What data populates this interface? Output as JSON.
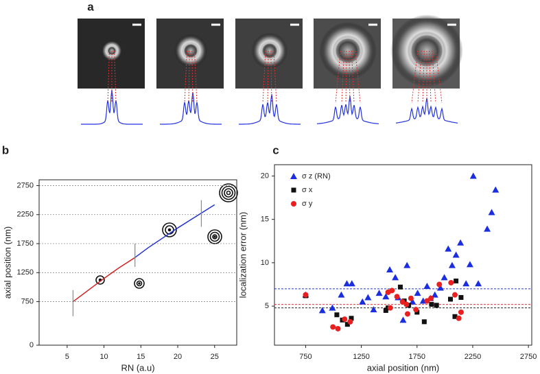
{
  "panel_labels": [
    "a",
    "b",
    "c"
  ],
  "chart_data": [
    {
      "type": "line",
      "xlabel": "RN (a.u)",
      "ylabel": "axial position (nm)",
      "xlim": [
        1.2,
        28
      ],
      "ylim": [
        0,
        2850
      ],
      "xticks": [
        5,
        10,
        15,
        20,
        25
      ],
      "yticks": [
        0,
        750,
        1250,
        1750,
        2250,
        2750
      ],
      "grid": true,
      "series": [
        {
          "color": "#d42020",
          "x": [
            5.8,
            8,
            10,
            12,
            14.2
          ],
          "values": [
            750,
            960,
            1150,
            1330,
            1510
          ]
        },
        {
          "color": "#2030d0",
          "x": [
            14.2,
            16,
            18,
            20,
            22,
            24,
            25
          ],
          "values": [
            1510,
            1680,
            1850,
            2020,
            2180,
            2340,
            2420
          ]
        }
      ],
      "error_bars": {
        "color": "#888888",
        "x": [
          5.8,
          14.2,
          23.2
        ],
        "values": [
          725,
          1550,
          2270
        ],
        "errors": [
          225,
          200,
          230
        ]
      }
    },
    {
      "type": "scatter",
      "xlabel": "axial position (nm)",
      "ylabel": "localization error (nm)",
      "xlim": [
        470,
        2780
      ],
      "ylim": [
        0.5,
        21.3
      ],
      "xticks": [
        750,
        1250,
        1750,
        2250,
        2750
      ],
      "yticks": [
        5,
        10,
        15,
        20
      ],
      "legend": "upper left",
      "series": [
        {
          "name": "σ z (RN)",
          "color": "#1a2ee0",
          "marker": "triangle",
          "x": [
            750,
            900,
            990,
            1070,
            1120,
            1165,
            1260,
            1310,
            1360,
            1410,
            1470,
            1505,
            1555,
            1580,
            1625,
            1660,
            1710,
            1755,
            1805,
            1840,
            1870,
            1910,
            1960,
            1995,
            2030,
            2065,
            2100,
            2140,
            2190,
            2225,
            2255,
            2300,
            2380,
            2420,
            2455
          ],
          "values": [
            6.3,
            4.5,
            4.8,
            6.3,
            7.6,
            7.6,
            5.5,
            6,
            4.6,
            6.5,
            6.1,
            9.2,
            8.3,
            6,
            3.4,
            9.7,
            5.5,
            6.5,
            5.6,
            7.3,
            5.9,
            6.3,
            7.1,
            8.3,
            11.6,
            9.7,
            10.9,
            12.3,
            7.6,
            9.8,
            20,
            7.6,
            13.9,
            15.8,
            18.4
          ]
        },
        {
          "name": "σ x",
          "color": "#111111",
          "marker": "square",
          "x": [
            750,
            1030,
            1080,
            1125,
            1160,
            1470,
            1490,
            1600,
            1635,
            1675,
            1750,
            1815,
            1880,
            1925,
            2050,
            2090,
            2100,
            2145
          ],
          "values": [
            6.2,
            4.0,
            3.4,
            2.9,
            3.6,
            4.5,
            4.8,
            7.2,
            5.6,
            5.1,
            4.3,
            3.2,
            5.2,
            5.1,
            5.8,
            3.8,
            7.9,
            6.0
          ]
        },
        {
          "name": "σ y",
          "color": "#e82020",
          "marker": "circle",
          "x": [
            750,
            995,
            1040,
            1100,
            1150,
            1490,
            1510,
            1525,
            1570,
            1620,
            1655,
            1665,
            1695,
            1740,
            1840,
            1875,
            1950,
            2055,
            2090,
            2125,
            2145
          ],
          "values": [
            6.3,
            2.6,
            2.4,
            3.5,
            3.2,
            6.6,
            4.8,
            6.8,
            6.1,
            5.5,
            5.2,
            4.1,
            5.9,
            4.6,
            5.6,
            5.9,
            7.5,
            7.7,
            6.3,
            3.6,
            4.3
          ]
        }
      ],
      "hlines": [
        {
          "value": 7.0,
          "color": "#2030d0"
        },
        {
          "value": 5.2,
          "color": "#e03030"
        },
        {
          "value": 4.8,
          "color": "#222222"
        }
      ]
    }
  ]
}
